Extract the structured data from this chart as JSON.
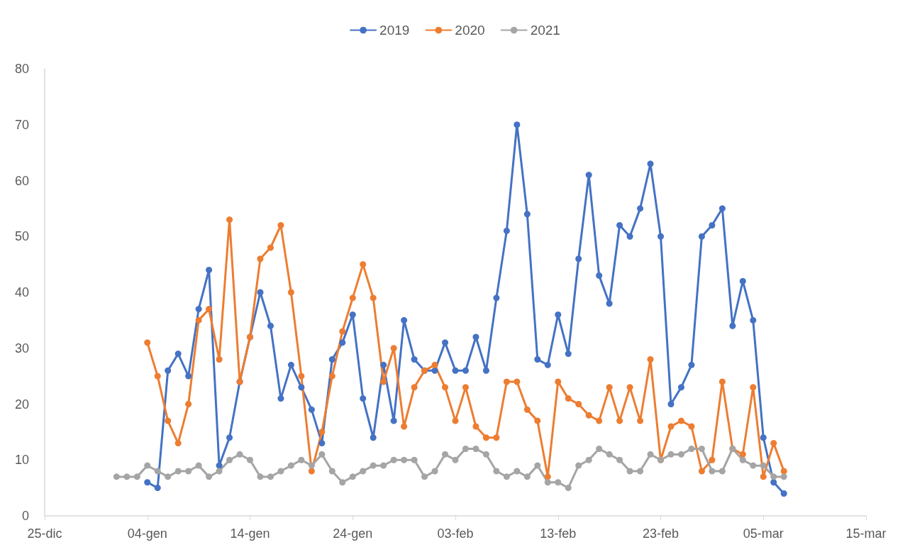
{
  "chart_data": {
    "type": "line",
    "categories": [
      "25-dic",
      null,
      null,
      null,
      null,
      null,
      null,
      null,
      null,
      null,
      "04-gen",
      null,
      null,
      null,
      null,
      null,
      null,
      null,
      null,
      null,
      "14-gen",
      null,
      null,
      null,
      null,
      null,
      null,
      null,
      null,
      null,
      "24-gen",
      null,
      null,
      null,
      null,
      null,
      null,
      null,
      null,
      null,
      "03-feb",
      null,
      null,
      null,
      null,
      null,
      null,
      null,
      null,
      null,
      "13-feb",
      null,
      null,
      null,
      null,
      null,
      null,
      null,
      null,
      null,
      "23-feb",
      null,
      null,
      null,
      null,
      null,
      null,
      null,
      null,
      null,
      "05-mar",
      null,
      null,
      null,
      null,
      null,
      null,
      null,
      null,
      null,
      "15-mar"
    ],
    "series": [
      {
        "name": "2019",
        "color": "#4472c4",
        "values": [
          null,
          null,
          null,
          null,
          null,
          null,
          null,
          null,
          null,
          null,
          6,
          5,
          26,
          29,
          25,
          37,
          44,
          9,
          14,
          24,
          32,
          40,
          34,
          21,
          27,
          23,
          19,
          13,
          28,
          31,
          36,
          21,
          14,
          27,
          17,
          35,
          28,
          26,
          26,
          31,
          26,
          26,
          32,
          26,
          39,
          51,
          70,
          54,
          28,
          27,
          36,
          29,
          46,
          61,
          43,
          38,
          52,
          50,
          55,
          63,
          50,
          20,
          23,
          27,
          50,
          52,
          55,
          34,
          42,
          35,
          14,
          6,
          4,
          null,
          null,
          null,
          null,
          null,
          null,
          null,
          null
        ]
      },
      {
        "name": "2020",
        "color": "#ed7d31",
        "values": [
          null,
          null,
          null,
          null,
          null,
          null,
          null,
          null,
          null,
          null,
          31,
          25,
          17,
          13,
          20,
          35,
          37,
          28,
          53,
          24,
          32,
          46,
          48,
          52,
          40,
          25,
          8,
          15,
          25,
          33,
          39,
          45,
          39,
          24,
          30,
          16,
          23,
          26,
          27,
          23,
          17,
          23,
          16,
          14,
          14,
          24,
          24,
          19,
          17,
          7,
          24,
          21,
          20,
          18,
          17,
          23,
          17,
          23,
          17,
          28,
          10,
          16,
          17,
          16,
          8,
          10,
          24,
          12,
          11,
          23,
          7,
          13,
          8,
          null,
          null,
          null,
          null,
          null,
          null,
          null,
          null
        ]
      },
      {
        "name": "2021",
        "color": "#a5a5a5",
        "values": [
          null,
          null,
          null,
          null,
          null,
          null,
          null,
          7,
          7,
          7,
          9,
          8,
          7,
          8,
          8,
          9,
          7,
          8,
          10,
          11,
          10,
          7,
          7,
          8,
          9,
          10,
          9,
          11,
          8,
          6,
          7,
          8,
          9,
          9,
          10,
          10,
          10,
          7,
          8,
          11,
          10,
          12,
          12,
          11,
          8,
          7,
          8,
          7,
          9,
          6,
          6,
          5,
          9,
          10,
          12,
          11,
          10,
          8,
          8,
          11,
          10,
          11,
          11,
          12,
          12,
          8,
          8,
          12,
          10,
          9,
          9,
          7,
          7,
          null,
          null,
          null,
          null,
          null,
          null,
          null,
          null
        ]
      }
    ],
    "ylim": [
      0,
      80
    ],
    "yticks": [
      0,
      10,
      20,
      30,
      40,
      50,
      60,
      70,
      80
    ],
    "grid": false,
    "legend": "top",
    "marker": "circle",
    "line_style": "solid"
  }
}
